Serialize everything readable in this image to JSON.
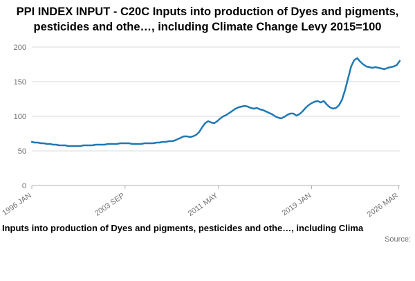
{
  "title": "PPI INDEX INPUT - C20C Inputs into production of Dyes and pigments, pesticides and othe…, including Climate Change Levy 2015=100",
  "caption": "Inputs into production of Dyes and pigments, pesticides and othe…, including Clima",
  "source_label": "Source:",
  "colors": {
    "line": "#1f78b4",
    "grid": "#d9d9d9",
    "axis": "#b0b0b0",
    "tick_text": "#707070"
  },
  "chart_data": {
    "type": "line",
    "title": "PPI INDEX INPUT - C20C Inputs into production of Dyes and pigments, pesticides and othe…, including Climate Change Levy 2015=100",
    "xlabel": "",
    "ylabel": "",
    "ylim": [
      0,
      200
    ],
    "y_ticks": [
      0,
      50,
      100,
      150,
      200
    ],
    "grid": true,
    "legend": "none",
    "x_start": 1996.0,
    "x_step": 0.25,
    "x_ticks": [
      {
        "label": "1996 JAN",
        "x": 1996.0
      },
      {
        "label": "2003 SEP",
        "x": 2003.667
      },
      {
        "label": "2011 MAY",
        "x": 2011.333
      },
      {
        "label": "2019 JAN",
        "x": 2019.0
      },
      {
        "label": "2026 MAR",
        "x": 2026.167
      }
    ],
    "series": [
      {
        "name": "PPI INDEX INPUT - C20C, 2015=100",
        "values": [
          63,
          62,
          62,
          61,
          61,
          60,
          60,
          59,
          59,
          58,
          58,
          58,
          57,
          57,
          57,
          57,
          57,
          58,
          58,
          58,
          58,
          59,
          59,
          59,
          59,
          60,
          60,
          60,
          60,
          61,
          61,
          61,
          61,
          60,
          60,
          60,
          60,
          61,
          61,
          61,
          61,
          62,
          62,
          63,
          63,
          64,
          64,
          65,
          67,
          69,
          71,
          71,
          70,
          71,
          73,
          77,
          84,
          90,
          93,
          91,
          90,
          93,
          97,
          100,
          102,
          105,
          108,
          111,
          113,
          114,
          115,
          114,
          112,
          111,
          112,
          110,
          109,
          107,
          105,
          103,
          100,
          98,
          97,
          99,
          102,
          104,
          104,
          101,
          103,
          107,
          112,
          116,
          119,
          121,
          122,
          120,
          122,
          117,
          113,
          111,
          112,
          116,
          124,
          138,
          155,
          172,
          181,
          184,
          179,
          175,
          172,
          171,
          170,
          171,
          170,
          169,
          168,
          170,
          171,
          172,
          174,
          180
        ]
      }
    ]
  }
}
